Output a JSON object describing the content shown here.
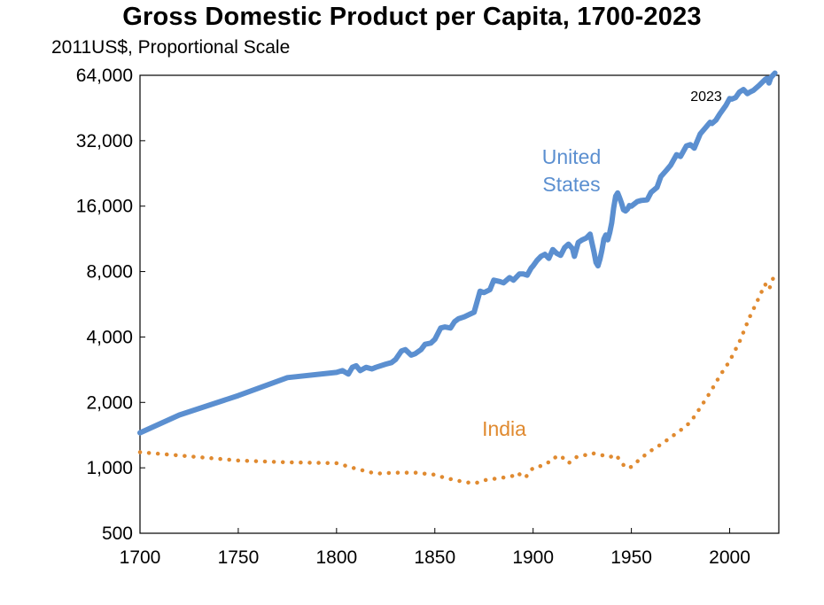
{
  "chart_data": {
    "type": "line",
    "title": "Gross Domestic Product per Capita, 1700-2023",
    "subtitle": "2011US$, Proportional Scale",
    "xlabel": "",
    "ylabel": "",
    "y_scale": "log2",
    "xlim": [
      1700,
      2025
    ],
    "ylim": [
      500,
      64000
    ],
    "x_ticks": [
      1700,
      1750,
      1800,
      1850,
      1900,
      1950,
      2000
    ],
    "x_tick_labels": [
      "1700",
      "1750",
      "1800",
      "1850",
      "1900",
      "1950",
      "2000"
    ],
    "y_ticks": [
      500,
      1000,
      2000,
      4000,
      8000,
      16000,
      32000,
      64000
    ],
    "y_tick_labels": [
      "500",
      "1,000",
      "2,000",
      "4,000",
      "8,000",
      "16,000",
      "32,000",
      "64,000"
    ],
    "grid": false,
    "end_label": "2023",
    "series": [
      {
        "name": "United States",
        "label_lines": [
          "United",
          "States"
        ],
        "color": "#5b8fd0",
        "style": "solid",
        "x": [
          1700,
          1720,
          1750,
          1775,
          1800,
          1803,
          1806,
          1808,
          1810,
          1812,
          1815,
          1818,
          1820,
          1825,
          1828,
          1830,
          1833,
          1835,
          1838,
          1840,
          1843,
          1845,
          1848,
          1850,
          1853,
          1855,
          1858,
          1860,
          1862,
          1865,
          1868,
          1870,
          1873,
          1875,
          1878,
          1880,
          1883,
          1885,
          1888,
          1890,
          1893,
          1895,
          1897,
          1899,
          1900,
          1902,
          1904,
          1906,
          1908,
          1910,
          1912,
          1914,
          1916,
          1918,
          1920,
          1921,
          1923,
          1925,
          1927,
          1929,
          1930,
          1931,
          1932,
          1933,
          1934,
          1935,
          1936,
          1937,
          1938,
          1939,
          1940,
          1941,
          1942,
          1943,
          1944,
          1945,
          1946,
          1947,
          1948,
          1949,
          1950,
          1953,
          1955,
          1958,
          1960,
          1963,
          1965,
          1968,
          1970,
          1973,
          1975,
          1978,
          1980,
          1982,
          1985,
          1988,
          1990,
          1991,
          1993,
          1995,
          1998,
          2000,
          2001,
          2003,
          2005,
          2007,
          2009,
          2010,
          2012,
          2015,
          2018,
          2019,
          2020,
          2021,
          2022,
          2023
        ],
        "y": [
          1450,
          1750,
          2150,
          2600,
          2750,
          2800,
          2700,
          2900,
          2950,
          2800,
          2900,
          2850,
          2900,
          3000,
          3050,
          3150,
          3450,
          3500,
          3300,
          3350,
          3500,
          3700,
          3750,
          3900,
          4400,
          4450,
          4400,
          4700,
          4850,
          4950,
          5100,
          5200,
          6500,
          6400,
          6600,
          7300,
          7200,
          7100,
          7500,
          7300,
          7800,
          7800,
          7700,
          8300,
          8500,
          9000,
          9400,
          9600,
          9200,
          10100,
          9700,
          9500,
          10300,
          10700,
          10200,
          9400,
          10900,
          11200,
          11400,
          11900,
          10800,
          9800,
          8800,
          8500,
          9100,
          10000,
          11300,
          11800,
          11200,
          12100,
          13400,
          15700,
          17800,
          18400,
          17500,
          16500,
          15400,
          15200,
          15500,
          16100,
          16000,
          16800,
          17000,
          17100,
          18500,
          19500,
          21900,
          23500,
          24700,
          27600,
          27100,
          30300,
          30700,
          29600,
          34400,
          37000,
          38900,
          38400,
          39800,
          42500,
          46400,
          50000,
          49700,
          50500,
          53600,
          55000,
          52700,
          53400,
          54500,
          57500,
          61200,
          62000,
          59000,
          62500,
          64000,
          65500
        ]
      },
      {
        "name": "India",
        "color": "#e08a30",
        "style": "dotted",
        "x": [
          1700,
          1720,
          1750,
          1775,
          1800,
          1810,
          1820,
          1830,
          1840,
          1850,
          1855,
          1860,
          1865,
          1870,
          1873,
          1876,
          1880,
          1884,
          1888,
          1890,
          1892,
          1894,
          1896,
          1898,
          1900,
          1902,
          1904,
          1906,
          1908,
          1910,
          1912,
          1914,
          1916,
          1918,
          1920,
          1922,
          1925,
          1928,
          1930,
          1933,
          1936,
          1939,
          1942,
          1945,
          1947,
          1950,
          1955,
          1960,
          1965,
          1970,
          1975,
          1980,
          1985,
          1990,
          1995,
          2000,
          2005,
          2010,
          2015,
          2018,
          2020,
          2022,
          2023
        ],
        "y": [
          1180,
          1140,
          1080,
          1060,
          1050,
          990,
          940,
          950,
          950,
          930,
          900,
          880,
          860,
          850,
          860,
          880,
          890,
          900,
          910,
          920,
          950,
          920,
          900,
          950,
          1000,
          1010,
          1020,
          1050,
          1060,
          1110,
          1120,
          1140,
          1090,
          1050,
          1080,
          1120,
          1140,
          1150,
          1170,
          1150,
          1140,
          1120,
          1150,
          1060,
          1000,
          1010,
          1110,
          1200,
          1280,
          1380,
          1490,
          1620,
          1890,
          2220,
          2650,
          3100,
          3800,
          4900,
          6100,
          7000,
          6600,
          7400,
          7800
        ]
      }
    ]
  }
}
